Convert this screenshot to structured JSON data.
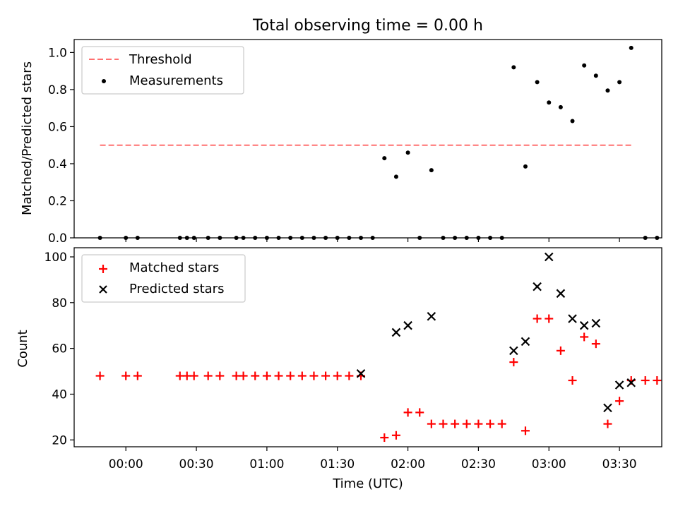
{
  "figure": {
    "title": "Total observing time = 0.00 h"
  },
  "chart_data": [
    {
      "type": "scatter",
      "ylabel": "Matched/Predicted stars",
      "ylim": [
        0,
        1.07
      ],
      "xlim_minutes": [
        -22,
        228
      ],
      "yticks": [
        0.0,
        0.2,
        0.4,
        0.6,
        0.8,
        1.0
      ],
      "ytick_labels": [
        "0.0",
        "0.2",
        "0.4",
        "0.6",
        "0.8",
        "1.0"
      ],
      "legend_position": "top-left",
      "threshold": {
        "name": "Threshold",
        "value": 0.5,
        "x_range": [
          -11,
          216
        ],
        "color": "#ff7070"
      },
      "series": [
        {
          "name": "Measurements",
          "color": "#000000",
          "points": [
            [
              -11,
              0
            ],
            [
              0,
              0
            ],
            [
              5,
              0
            ],
            [
              23,
              0
            ],
            [
              26,
              0
            ],
            [
              29,
              0
            ],
            [
              35,
              0
            ],
            [
              40,
              0
            ],
            [
              47,
              0
            ],
            [
              50,
              0
            ],
            [
              55,
              0
            ],
            [
              60,
              0
            ],
            [
              65,
              0
            ],
            [
              70,
              0
            ],
            [
              75,
              0
            ],
            [
              80,
              0
            ],
            [
              85,
              0
            ],
            [
              90,
              0
            ],
            [
              95,
              0
            ],
            [
              100,
              0
            ],
            [
              105,
              0
            ],
            [
              110,
              0.43
            ],
            [
              115,
              0.33
            ],
            [
              120,
              0.46
            ],
            [
              125,
              0
            ],
            [
              130,
              0.365
            ],
            [
              135,
              0
            ],
            [
              140,
              0
            ],
            [
              145,
              0
            ],
            [
              150,
              0
            ],
            [
              155,
              0
            ],
            [
              160,
              0
            ],
            [
              165,
              0.92
            ],
            [
              170,
              0.385
            ],
            [
              175,
              0.84
            ],
            [
              180,
              0.73
            ],
            [
              185,
              0.705
            ],
            [
              190,
              0.63
            ],
            [
              195,
              0.93
            ],
            [
              200,
              0.875
            ],
            [
              205,
              0.795
            ],
            [
              210,
              0.84
            ],
            [
              215,
              1.025
            ],
            [
              221,
              0
            ],
            [
              226,
              0
            ]
          ]
        }
      ]
    },
    {
      "type": "scatter",
      "xlabel": "Time (UTC)",
      "ylabel": "Count",
      "ylim": [
        17,
        104
      ],
      "xlim_minutes": [
        -22,
        228
      ],
      "yticks": [
        20,
        40,
        60,
        80,
        100
      ],
      "ytick_labels": [
        "20",
        "40",
        "60",
        "80",
        "100"
      ],
      "xticks_minutes": [
        0,
        30,
        60,
        90,
        120,
        150,
        180,
        210
      ],
      "xtick_labels": [
        "00:00",
        "00:30",
        "01:00",
        "01:30",
        "02:00",
        "02:30",
        "03:00",
        "03:30"
      ],
      "legend_position": "top-left",
      "series": [
        {
          "name": "Matched stars",
          "marker": "plus",
          "color": "#ff0000",
          "points": [
            [
              -11,
              48
            ],
            [
              0,
              48
            ],
            [
              5,
              48
            ],
            [
              23,
              48
            ],
            [
              26,
              48
            ],
            [
              29,
              48
            ],
            [
              35,
              48
            ],
            [
              40,
              48
            ],
            [
              47,
              48
            ],
            [
              50,
              48
            ],
            [
              55,
              48
            ],
            [
              60,
              48
            ],
            [
              65,
              48
            ],
            [
              70,
              48
            ],
            [
              75,
              48
            ],
            [
              80,
              48
            ],
            [
              85,
              48
            ],
            [
              90,
              48
            ],
            [
              95,
              48
            ],
            [
              100,
              48
            ],
            [
              110,
              21
            ],
            [
              115,
              22
            ],
            [
              120,
              32
            ],
            [
              125,
              32
            ],
            [
              130,
              27
            ],
            [
              135,
              27
            ],
            [
              140,
              27
            ],
            [
              145,
              27
            ],
            [
              150,
              27
            ],
            [
              155,
              27
            ],
            [
              160,
              27
            ],
            [
              165,
              54
            ],
            [
              170,
              24
            ],
            [
              175,
              73
            ],
            [
              180,
              73
            ],
            [
              185,
              59
            ],
            [
              190,
              46
            ],
            [
              195,
              65
            ],
            [
              200,
              62
            ],
            [
              205,
              27
            ],
            [
              210,
              37
            ],
            [
              215,
              46
            ],
            [
              221,
              46
            ],
            [
              226,
              46
            ]
          ]
        },
        {
          "name": "Predicted stars",
          "marker": "x",
          "color": "#000000",
          "points": [
            [
              100,
              49
            ],
            [
              115,
              67
            ],
            [
              120,
              70
            ],
            [
              130,
              74
            ],
            [
              165,
              59
            ],
            [
              170,
              63
            ],
            [
              175,
              87
            ],
            [
              180,
              100
            ],
            [
              185,
              84
            ],
            [
              190,
              73
            ],
            [
              195,
              70
            ],
            [
              200,
              71
            ],
            [
              205,
              34
            ],
            [
              210,
              44
            ],
            [
              215,
              45
            ]
          ]
        }
      ]
    }
  ]
}
